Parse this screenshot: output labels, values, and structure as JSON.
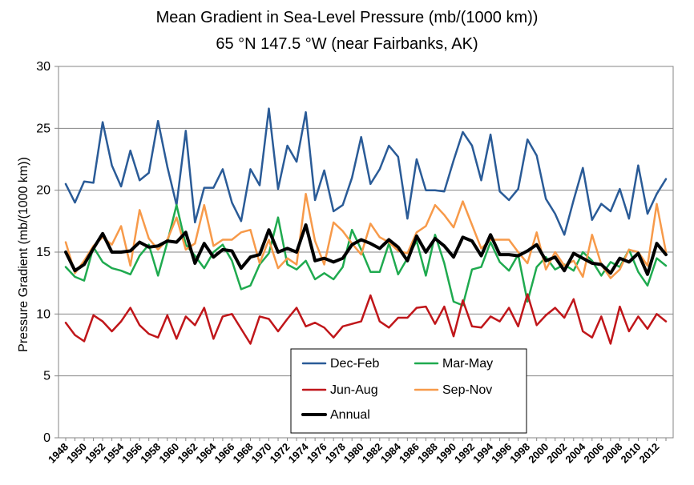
{
  "chart_data": {
    "type": "line",
    "title": "Mean Gradient in Sea-Level Pressure (mb/(1000 km))",
    "subtitle": "65 °N 147.5 °W   (near Fairbanks, AK)",
    "xlabel": "",
    "ylabel": "Pressure Gradient (mb/(1000 km))",
    "ylim": [
      0,
      30
    ],
    "yticks": [
      0,
      5,
      10,
      15,
      20,
      25,
      30
    ],
    "xlim": [
      1948,
      2013
    ],
    "xtick_labels": [
      "1948",
      "1950",
      "1952",
      "1954",
      "1956",
      "1958",
      "1960",
      "1962",
      "1964",
      "1966",
      "1968",
      "1970",
      "1972",
      "1974",
      "1976",
      "1978",
      "1980",
      "1982",
      "1984",
      "1986",
      "1988",
      "1990",
      "1992",
      "1994",
      "1996",
      "1998",
      "2000",
      "2002",
      "2004",
      "2006",
      "2008",
      "2010",
      "2012"
    ],
    "grid": true,
    "legend_position": "bottom-center",
    "x": [
      1948,
      1949,
      1950,
      1951,
      1952,
      1953,
      1954,
      1955,
      1956,
      1957,
      1958,
      1959,
      1960,
      1961,
      1962,
      1963,
      1964,
      1965,
      1966,
      1967,
      1968,
      1969,
      1970,
      1971,
      1972,
      1973,
      1974,
      1975,
      1976,
      1977,
      1978,
      1979,
      1980,
      1981,
      1982,
      1983,
      1984,
      1985,
      1986,
      1987,
      1988,
      1989,
      1990,
      1991,
      1992,
      1993,
      1994,
      1995,
      1996,
      1997,
      1998,
      1999,
      2000,
      2001,
      2002,
      2003,
      2004,
      2005,
      2006,
      2007,
      2008,
      2009,
      2010,
      2011,
      2012,
      2013
    ],
    "series": [
      {
        "name": "Dec-Feb",
        "color": "#2a5b97",
        "width": 2.5,
        "values": [
          20.5,
          19.0,
          20.7,
          20.6,
          25.5,
          22.0,
          20.3,
          23.2,
          20.8,
          21.4,
          25.6,
          21.9,
          18.8,
          24.8,
          17.4,
          20.2,
          20.2,
          21.7,
          19.0,
          17.5,
          21.7,
          20.4,
          26.6,
          20.1,
          23.6,
          22.3,
          26.3,
          19.2,
          21.6,
          18.3,
          18.8,
          21.0,
          24.3,
          20.5,
          21.7,
          23.6,
          22.7,
          17.7,
          22.5,
          20.0,
          20.0,
          19.9,
          22.4,
          24.7,
          23.6,
          20.8,
          24.5,
          19.9,
          19.2,
          20.1,
          24.1,
          22.8,
          19.3,
          18.1,
          16.4,
          19.2,
          21.8,
          17.6,
          18.9,
          18.3,
          20.1,
          17.7,
          22.0,
          18.1,
          19.7,
          20.9
        ]
      },
      {
        "name": "Mar-May",
        "color": "#1faa4f",
        "width": 2.5,
        "values": [
          13.8,
          13.0,
          12.7,
          15.4,
          14.2,
          13.7,
          13.5,
          13.2,
          14.7,
          15.6,
          13.1,
          15.8,
          18.8,
          15.6,
          14.7,
          13.7,
          15.0,
          15.6,
          14.3,
          12.0,
          12.3,
          14.0,
          14.9,
          17.8,
          14.0,
          13.6,
          14.3,
          12.8,
          13.3,
          12.8,
          13.8,
          16.8,
          15.2,
          13.4,
          13.4,
          15.7,
          13.2,
          14.5,
          15.9,
          13.1,
          16.4,
          14.1,
          11.0,
          10.7,
          13.6,
          13.8,
          15.8,
          14.2,
          13.5,
          14.8,
          11.0,
          13.8,
          14.6,
          13.6,
          14.0,
          13.5,
          15.0,
          14.3,
          13.1,
          14.2,
          13.8,
          15.2,
          13.4,
          12.3,
          14.5,
          13.9
        ]
      },
      {
        "name": "Jun-Aug",
        "color": "#c0161a",
        "width": 2.5,
        "values": [
          9.3,
          8.3,
          7.8,
          9.9,
          9.4,
          8.6,
          9.4,
          10.5,
          9.1,
          8.4,
          8.1,
          9.9,
          8.0,
          9.8,
          9.1,
          10.5,
          8.0,
          9.8,
          10.0,
          8.8,
          7.6,
          9.8,
          9.6,
          8.6,
          9.6,
          10.5,
          9.0,
          9.3,
          8.9,
          8.1,
          9.0,
          9.2,
          9.4,
          11.5,
          9.4,
          8.9,
          9.7,
          9.7,
          10.5,
          10.6,
          9.2,
          10.6,
          8.2,
          11.1,
          9.0,
          8.9,
          9.8,
          9.4,
          10.5,
          9.0,
          11.6,
          9.1,
          9.9,
          10.5,
          9.7,
          11.2,
          8.6,
          8.1,
          9.8,
          7.6,
          10.6,
          8.6,
          9.8,
          8.8,
          10.0,
          9.4
        ]
      },
      {
        "name": "Sep-Nov",
        "color": "#f79a4a",
        "width": 2.5,
        "values": [
          15.8,
          13.3,
          14.3,
          15.5,
          16.2,
          15.6,
          17.1,
          13.9,
          18.4,
          16.1,
          15.2,
          16.0,
          17.8,
          15.2,
          15.7,
          18.8,
          15.5,
          16.0,
          16.0,
          16.6,
          16.8,
          14.1,
          16.0,
          13.7,
          14.5,
          14.0,
          19.7,
          15.9,
          14.0,
          17.4,
          16.7,
          15.7,
          14.8,
          17.3,
          16.2,
          15.8,
          15.1,
          14.9,
          16.6,
          17.1,
          18.8,
          18.0,
          17.0,
          19.1,
          17.2,
          15.3,
          16.0,
          16.0,
          16.0,
          15.0,
          14.1,
          16.6,
          13.6,
          15.0,
          13.9,
          14.3,
          13.0,
          16.4,
          14.0,
          12.9,
          13.6,
          15.2,
          15.0,
          13.9,
          18.9,
          15.0
        ]
      },
      {
        "name": "Annual",
        "color": "#000000",
        "width": 4,
        "values": [
          15.0,
          13.5,
          14.0,
          15.3,
          16.5,
          15.0,
          15.0,
          15.1,
          15.8,
          15.4,
          15.5,
          15.9,
          15.8,
          16.6,
          14.1,
          15.7,
          14.6,
          15.2,
          15.1,
          13.7,
          14.6,
          14.8,
          16.8,
          15.0,
          15.3,
          15.0,
          17.2,
          14.3,
          14.5,
          14.2,
          14.5,
          15.6,
          16.0,
          15.7,
          15.3,
          16.0,
          15.4,
          14.3,
          16.3,
          15.0,
          16.1,
          15.5,
          14.6,
          16.2,
          15.9,
          14.7,
          16.4,
          14.8,
          14.8,
          14.7,
          15.1,
          15.6,
          14.3,
          14.6,
          13.5,
          14.9,
          14.5,
          14.1,
          14.0,
          13.3,
          14.5,
          14.2,
          14.9,
          13.2,
          15.7,
          14.8
        ]
      }
    ]
  }
}
